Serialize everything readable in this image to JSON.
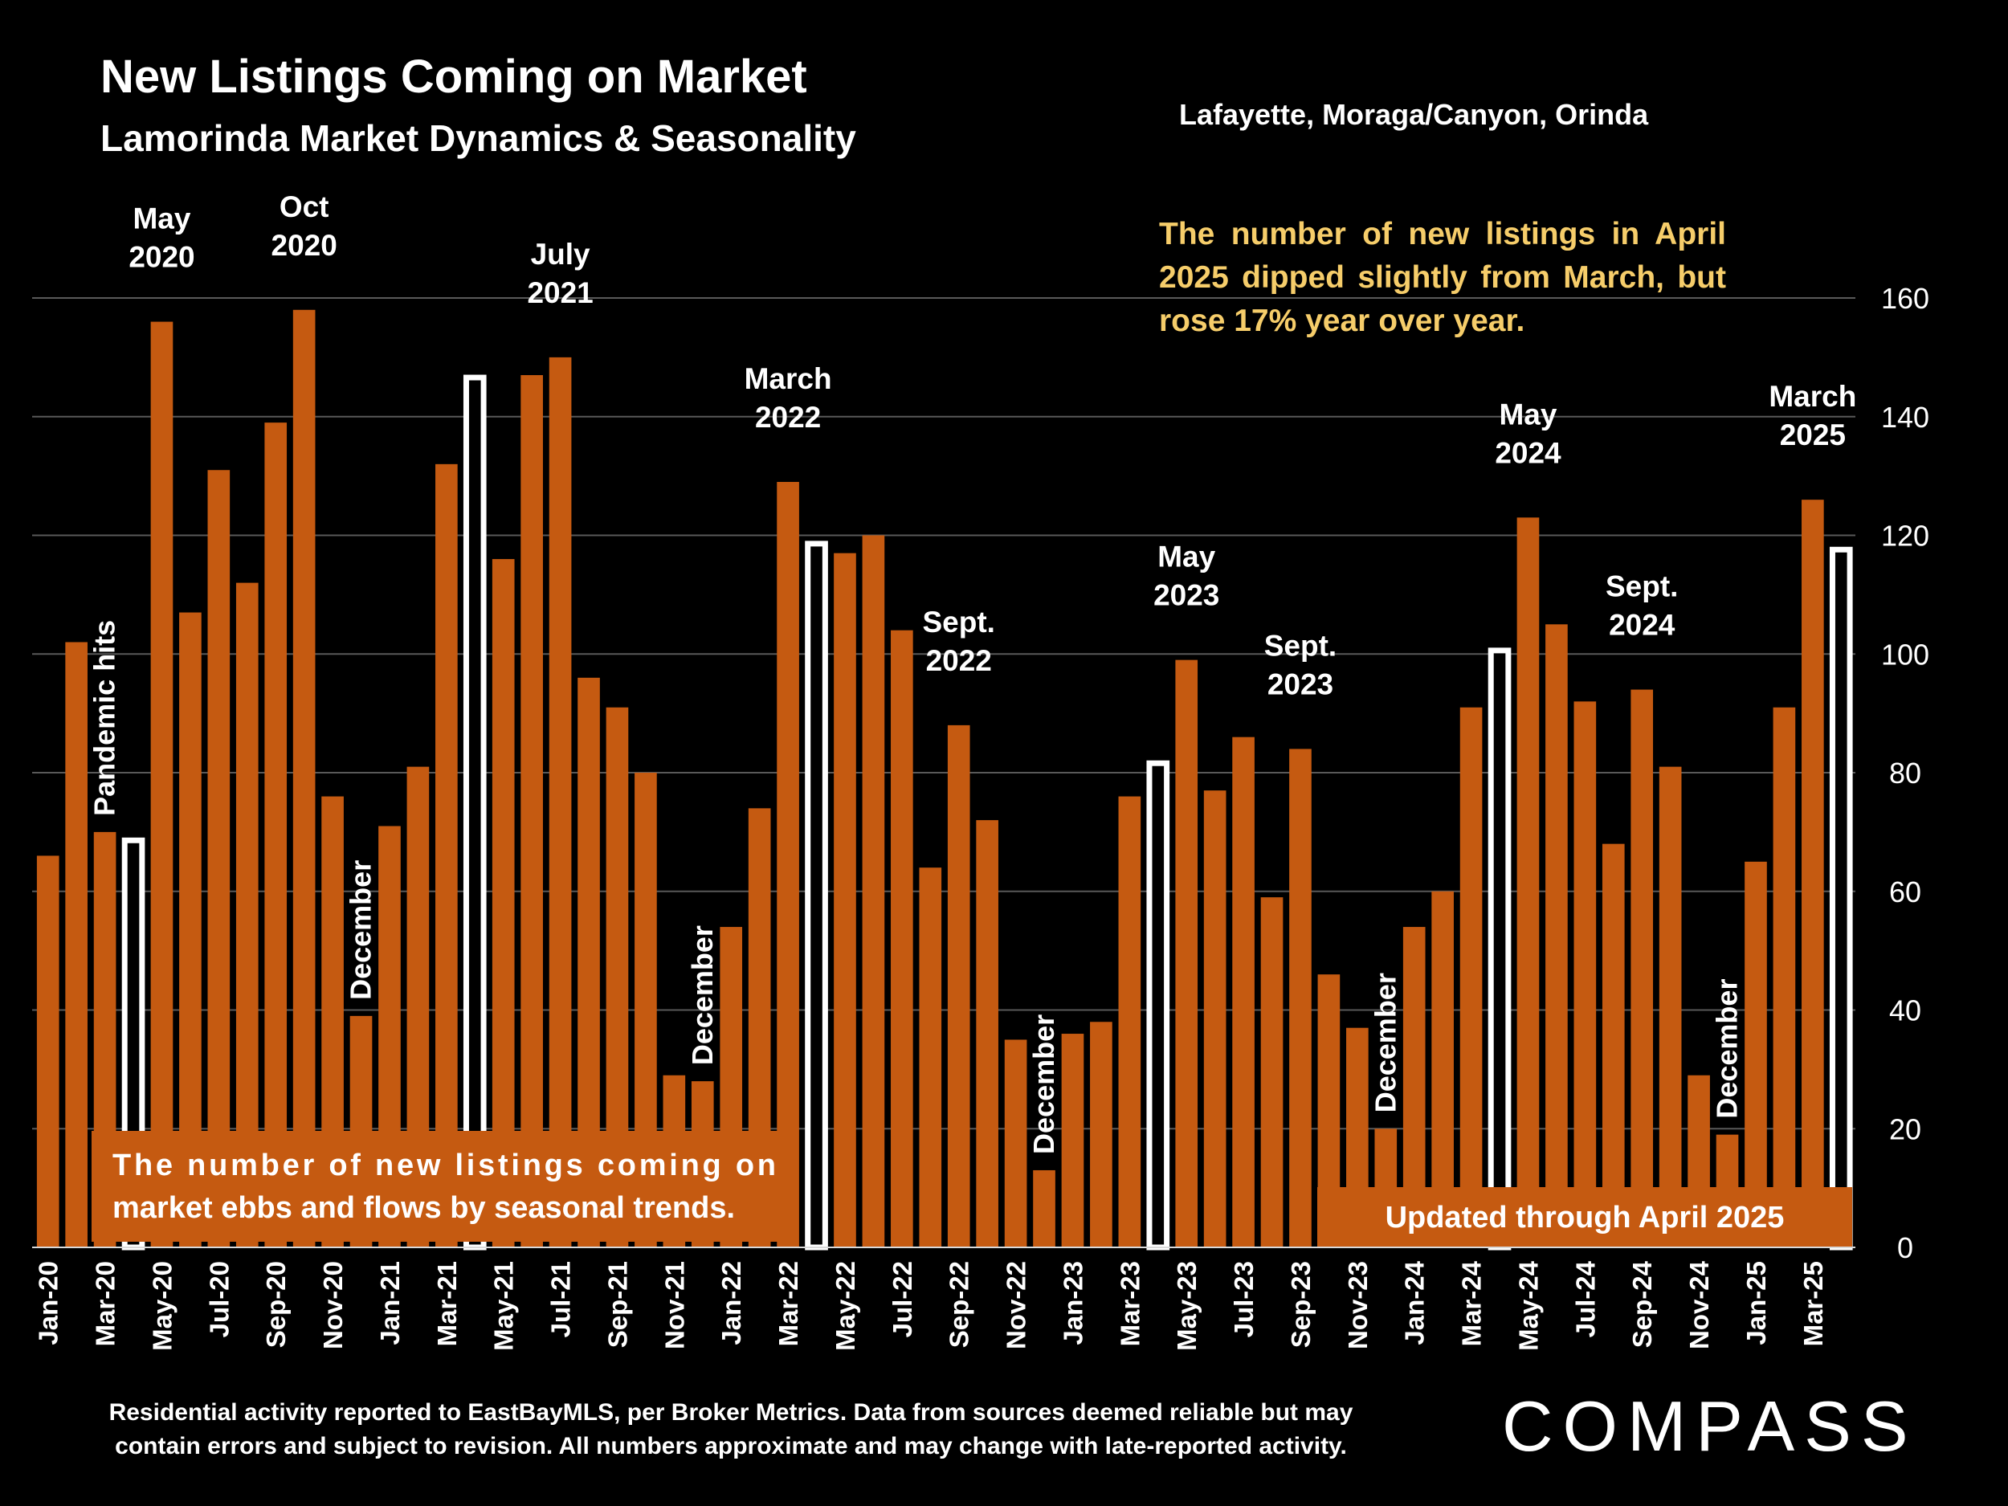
{
  "header": {
    "title": "New Listings Coming on Market",
    "subtitle": "Lamorinda Market Dynamics & Seasonality",
    "region": "Lafayette, Moraga/Canyon, Orinda"
  },
  "note": "The number of new listings in April 2025 dipped slightly from March, but rose 17% year over year.",
  "footer": "Residential activity reported to EastBayMLS, per Broker Metrics. Data from sources deemed reliable but may contain errors and subject to revision. All numbers approximate and may change with late-reported activity.",
  "logo": "COMPASS",
  "colors": {
    "bar": "#c55a11",
    "highlight_fill": "#000000",
    "highlight_stroke": "#ffffff",
    "grid": "#595959",
    "note": "#f6cd6a"
  },
  "chart_data": {
    "type": "bar",
    "x": [
      "Jan-20",
      "Feb-20",
      "Mar-20",
      "Apr-20",
      "May-20",
      "Jun-20",
      "Jul-20",
      "Aug-20",
      "Sep-20",
      "Oct-20",
      "Nov-20",
      "Dec-20",
      "Jan-21",
      "Feb-21",
      "Mar-21",
      "Apr-21",
      "May-21",
      "Jun-21",
      "Jul-21",
      "Aug-21",
      "Sep-21",
      "Oct-21",
      "Nov-21",
      "Dec-21",
      "Jan-22",
      "Feb-22",
      "Mar-22",
      "Apr-22",
      "May-22",
      "Jun-22",
      "Jul-22",
      "Aug-22",
      "Sep-22",
      "Oct-22",
      "Nov-22",
      "Dec-22",
      "Jan-23",
      "Feb-23",
      "Mar-23",
      "Apr-23",
      "May-23",
      "Jun-23",
      "Jul-23",
      "Aug-23",
      "Sep-23",
      "Oct-23",
      "Nov-23",
      "Dec-23",
      "Jan-24",
      "Feb-24",
      "Mar-24",
      "Apr-24",
      "May-24",
      "Jun-24",
      "Jul-24",
      "Aug-24",
      "Sep-24",
      "Oct-24",
      "Nov-24",
      "Dec-24",
      "Jan-25",
      "Feb-25",
      "Mar-25",
      "Apr-25"
    ],
    "tick_labels": [
      "Jan-20",
      "Mar-20",
      "May-20",
      "Jul-20",
      "Sep-20",
      "Nov-20",
      "Jan-21",
      "Mar-21",
      "May-21",
      "Jul-21",
      "Sep-21",
      "Nov-21",
      "Jan-22",
      "Mar-22",
      "May-22",
      "Jul-22",
      "Sep-22",
      "Nov-22",
      "Jan-23",
      "Mar-23",
      "May-23",
      "Jul-23",
      "Sep-23",
      "Nov-23",
      "Jan-24",
      "Mar-24",
      "May-24",
      "Jul-24",
      "Sep-24",
      "Nov-24",
      "Jan-25",
      "Mar-25"
    ],
    "values": [
      66,
      102,
      70,
      69,
      156,
      107,
      131,
      112,
      139,
      158,
      76,
      39,
      71,
      81,
      132,
      147,
      116,
      147,
      150,
      96,
      91,
      80,
      29,
      28,
      54,
      74,
      129,
      119,
      117,
      120,
      104,
      64,
      88,
      72,
      35,
      13,
      36,
      38,
      76,
      82,
      99,
      77,
      86,
      59,
      84,
      46,
      37,
      20,
      54,
      60,
      91,
      101,
      123,
      105,
      92,
      68,
      94,
      81,
      29,
      19,
      65,
      91,
      126,
      118
    ],
    "highlighted": [
      "Apr-20",
      "Apr-21",
      "Apr-22",
      "Apr-23",
      "Apr-24",
      "Apr-25"
    ],
    "ylim": [
      0,
      160
    ],
    "yticks": [
      0,
      20,
      40,
      60,
      80,
      100,
      120,
      140,
      160
    ],
    "grid": true,
    "annotations": [
      {
        "text": "Pandemic hits",
        "at": "Mar-20",
        "orientation": "vertical"
      },
      {
        "text": "May 2020",
        "at": "May-20"
      },
      {
        "text": "Oct 2020",
        "at": "Oct-20"
      },
      {
        "text": "December",
        "at": "Dec-20",
        "orientation": "vertical"
      },
      {
        "text": "July 2021",
        "at": "Jul-21"
      },
      {
        "text": "December",
        "at": "Dec-21",
        "orientation": "vertical"
      },
      {
        "text": "March 2022",
        "at": "Mar-22"
      },
      {
        "text": "Sept. 2022",
        "at": "Sep-22"
      },
      {
        "text": "December",
        "at": "Dec-22",
        "orientation": "vertical"
      },
      {
        "text": "May 2023",
        "at": "May-23"
      },
      {
        "text": "Sept. 2023",
        "at": "Sep-23"
      },
      {
        "text": "December",
        "at": "Dec-23",
        "orientation": "vertical"
      },
      {
        "text": "May 2024",
        "at": "May-24"
      },
      {
        "text": "Sept. 2024",
        "at": "Sep-24"
      },
      {
        "text": "December",
        "at": "Dec-24",
        "orientation": "vertical"
      },
      {
        "text": "March 2025",
        "at": "Mar-25"
      }
    ],
    "boxes": [
      {
        "text": "The number of new listings coming on market ebbs and flows by seasonal trends."
      },
      {
        "text": "Updated through April 2025"
      }
    ]
  }
}
